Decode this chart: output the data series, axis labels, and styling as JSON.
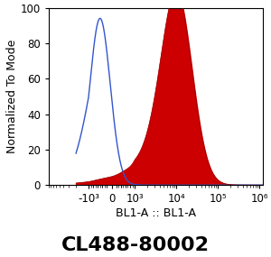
{
  "title": "CL488-80002",
  "xlabel": "BL1-A :: BL1-A",
  "ylabel": "Normalized To Mode",
  "ylim": [
    0,
    100
  ],
  "background_color": "#ffffff",
  "blue_color": "#3355cc",
  "red_color": "#cc0000",
  "title_fontsize": 16,
  "axis_label_fontsize": 9,
  "tick_fontsize": 8.5,
  "linthresh": 1000,
  "linscale": 0.5
}
